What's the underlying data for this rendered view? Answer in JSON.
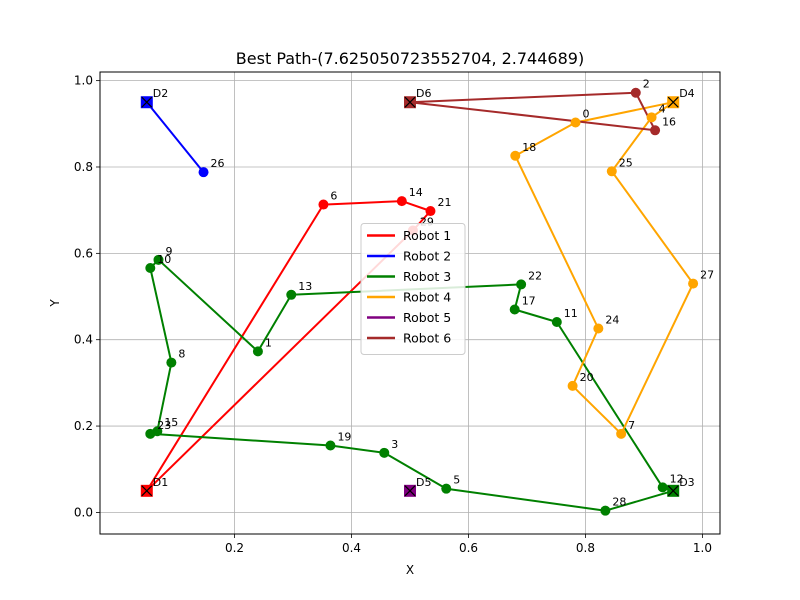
{
  "chart_data": {
    "type": "line",
    "title": "Best Path-(7.625050723552704, 2.744689)",
    "xlabel": "X",
    "ylabel": "Y",
    "xlim": [
      -0.03,
      1.03
    ],
    "ylim": [
      -0.05,
      1.02
    ],
    "xticks": [
      0.2,
      0.4,
      0.6,
      0.8,
      1.0
    ],
    "xtick_labels": [
      "0.2",
      "0.4",
      "0.6",
      "0.8",
      "1.0"
    ],
    "yticks": [
      0.0,
      0.2,
      0.4,
      0.6,
      0.8,
      1.0
    ],
    "ytick_labels": [
      "0.0",
      "0.2",
      "0.4",
      "0.6",
      "0.8",
      "1.0"
    ],
    "grid": true,
    "legend_position": "center",
    "depots": [
      {
        "label": "D1",
        "x": 0.05,
        "y": 0.05,
        "color": "#ff0000"
      },
      {
        "label": "D2",
        "x": 0.05,
        "y": 0.95,
        "color": "#0000ff"
      },
      {
        "label": "D3",
        "x": 0.95,
        "y": 0.05,
        "color": "#008000"
      },
      {
        "label": "D4",
        "x": 0.95,
        "y": 0.95,
        "color": "#ffa500"
      },
      {
        "label": "D5",
        "x": 0.5,
        "y": 0.05,
        "color": "#800080"
      },
      {
        "label": "D6",
        "x": 0.5,
        "y": 0.95,
        "color": "#a52a2a"
      }
    ],
    "series": [
      {
        "name": "Robot 1",
        "color": "#ff0000",
        "path": [
          {
            "x": 0.05,
            "y": 0.05
          },
          {
            "label": "6",
            "x": 0.352,
            "y": 0.713
          },
          {
            "label": "14",
            "x": 0.486,
            "y": 0.721
          },
          {
            "label": "21",
            "x": 0.535,
            "y": 0.698
          },
          {
            "label": "29",
            "x": 0.505,
            "y": 0.653
          },
          {
            "x": 0.05,
            "y": 0.05
          }
        ]
      },
      {
        "name": "Robot 2",
        "color": "#0000ff",
        "path": [
          {
            "x": 0.05,
            "y": 0.95
          },
          {
            "label": "26",
            "x": 0.147,
            "y": 0.788
          },
          {
            "x": 0.05,
            "y": 0.95
          }
        ]
      },
      {
        "name": "Robot 3",
        "color": "#008000",
        "path": [
          {
            "x": 0.95,
            "y": 0.05
          },
          {
            "label": "12",
            "x": 0.932,
            "y": 0.058
          },
          {
            "label": "11",
            "x": 0.751,
            "y": 0.441
          },
          {
            "label": "17",
            "x": 0.679,
            "y": 0.47
          },
          {
            "label": "22",
            "x": 0.69,
            "y": 0.528
          },
          {
            "label": "13",
            "x": 0.297,
            "y": 0.504
          },
          {
            "label": "1",
            "x": 0.24,
            "y": 0.373
          },
          {
            "label": "9",
            "x": 0.07,
            "y": 0.585
          },
          {
            "label": "10",
            "x": 0.056,
            "y": 0.566
          },
          {
            "label": "8",
            "x": 0.092,
            "y": 0.347
          },
          {
            "label": "15",
            "x": 0.068,
            "y": 0.188
          },
          {
            "label": "23",
            "x": 0.056,
            "y": 0.182
          },
          {
            "label": "19",
            "x": 0.364,
            "y": 0.155
          },
          {
            "label": "3",
            "x": 0.456,
            "y": 0.138
          },
          {
            "label": "5",
            "x": 0.562,
            "y": 0.055
          },
          {
            "label": "28",
            "x": 0.834,
            "y": 0.004
          },
          {
            "x": 0.95,
            "y": 0.05
          }
        ]
      },
      {
        "name": "Robot 4",
        "color": "#ffa500",
        "path": [
          {
            "x": 0.95,
            "y": 0.95
          },
          {
            "label": "0",
            "x": 0.783,
            "y": 0.903
          },
          {
            "label": "18",
            "x": 0.68,
            "y": 0.826
          },
          {
            "label": "24",
            "x": 0.822,
            "y": 0.426
          },
          {
            "label": "20",
            "x": 0.778,
            "y": 0.293
          },
          {
            "label": "7",
            "x": 0.861,
            "y": 0.182
          },
          {
            "label": "27",
            "x": 0.984,
            "y": 0.53
          },
          {
            "label": "25",
            "x": 0.845,
            "y": 0.79
          },
          {
            "label": "4",
            "x": 0.913,
            "y": 0.915
          },
          {
            "x": 0.95,
            "y": 0.95
          }
        ]
      },
      {
        "name": "Robot 5",
        "color": "#800080",
        "path": [
          {
            "x": 0.5,
            "y": 0.05
          }
        ]
      },
      {
        "name": "Robot 6",
        "color": "#a52a2a",
        "path": [
          {
            "x": 0.5,
            "y": 0.95
          },
          {
            "label": "2",
            "x": 0.886,
            "y": 0.972
          },
          {
            "label": "16",
            "x": 0.919,
            "y": 0.885
          },
          {
            "x": 0.5,
            "y": 0.95
          }
        ]
      }
    ]
  }
}
